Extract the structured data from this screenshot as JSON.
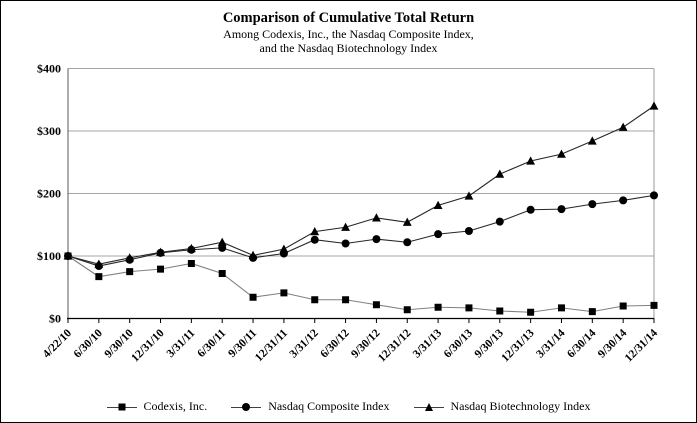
{
  "chart_data": {
    "type": "line",
    "title": "Comparison of Cumulative Total Return",
    "subtitle_line1": "Among Codexis, Inc., the Nasdaq Composite Index,",
    "subtitle_line2": "and the Nasdaq Biotechnology Index",
    "xlabel": "",
    "ylabel": "",
    "ylim": [
      0,
      400
    ],
    "grid": true,
    "legend_position": "bottom",
    "yticks": [
      {
        "value": 0,
        "label": "$0"
      },
      {
        "value": 100,
        "label": "$100"
      },
      {
        "value": 200,
        "label": "$200"
      },
      {
        "value": 300,
        "label": "$300"
      },
      {
        "value": 400,
        "label": "$400"
      }
    ],
    "categories": [
      "4/22/10",
      "6/30/10",
      "9/30/10",
      "12/31/10",
      "3/31/11",
      "6/30/11",
      "9/30/11",
      "12/31/11",
      "3/31/12",
      "6/30/12",
      "9/30/12",
      "12/31/12",
      "3/31/13",
      "6/30/13",
      "9/30/13",
      "12/31/13",
      "3/31/14",
      "6/30/14",
      "9/30/14",
      "12/31/14"
    ],
    "series": [
      {
        "name": "Codexis, Inc.",
        "marker": "square",
        "marker_color": "#000000",
        "line_color": "#808080",
        "values": [
          100,
          67,
          75,
          79,
          88,
          72,
          34,
          41,
          30,
          30,
          22,
          14,
          18,
          17,
          12,
          10,
          17,
          11,
          20,
          21
        ]
      },
      {
        "name": "Nasdaq Composite Index",
        "marker": "circle",
        "marker_color": "#000000",
        "line_color": "#262626",
        "values": [
          100,
          84,
          94,
          105,
          110,
          113,
          97,
          104,
          126,
          120,
          127,
          122,
          135,
          140,
          155,
          174,
          175,
          183,
          189,
          197
        ]
      },
      {
        "name": "Nasdaq Biotechnology Index",
        "marker": "triangle",
        "marker_color": "#000000",
        "line_color": "#262626",
        "values": [
          100,
          87,
          97,
          106,
          112,
          122,
          101,
          111,
          139,
          146,
          161,
          154,
          181,
          196,
          231,
          252,
          263,
          284,
          306,
          340
        ]
      }
    ],
    "colors": {
      "gridline": "#a6a6a6",
      "axis": "#000000",
      "plot_border": "#999999"
    }
  }
}
